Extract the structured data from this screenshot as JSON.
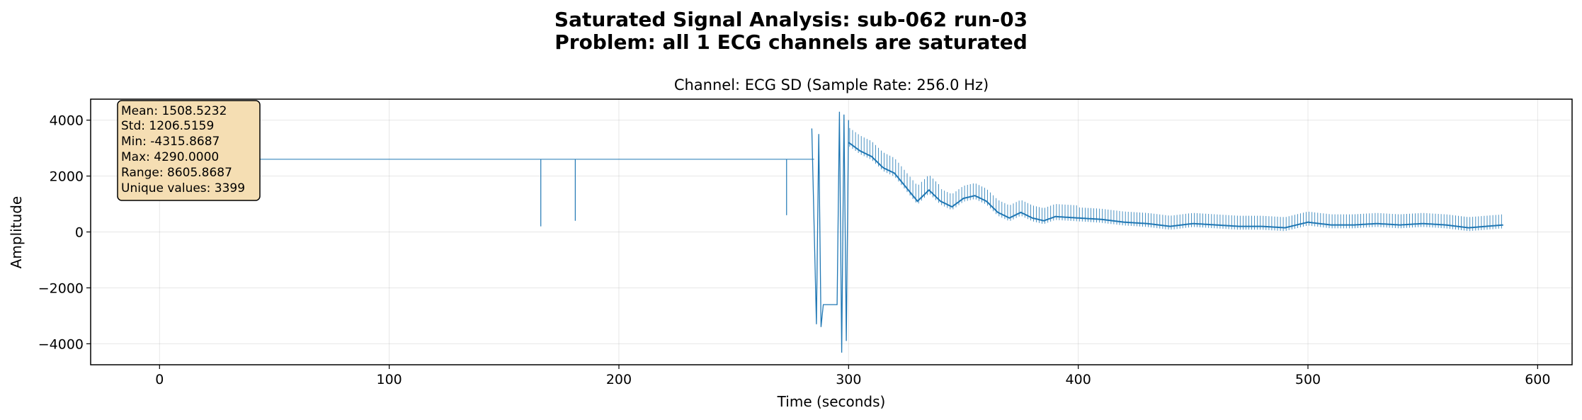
{
  "figure": {
    "title_line1": "Saturated Signal Analysis: sub-062 run-03",
    "title_line2": "Problem: all 1 ECG channels are saturated"
  },
  "chart_data": {
    "type": "line",
    "title": "Channel: ECG SD (Sample Rate: 256.0 Hz)",
    "xlabel": "Time (seconds)",
    "ylabel": "Amplitude",
    "xlim": [
      -30,
      615
    ],
    "ylim": [
      -4750,
      4750
    ],
    "xticks": [
      0,
      100,
      200,
      300,
      400,
      500,
      600
    ],
    "yticks": [
      -4000,
      -2000,
      0,
      2000,
      4000
    ],
    "ytick_labels": [
      "−4000",
      "−2000",
      "0",
      "2000",
      "4000"
    ],
    "grid": true,
    "line_color": "#1f77b4",
    "series": [
      {
        "baseline": {
          "x": [
            0,
            285
          ],
          "y": [
            2600,
            2600
          ]
        },
        "dropouts": [
          {
            "x": 166,
            "y_from": 2600,
            "y_to": 200
          },
          {
            "x": 181,
            "y_from": 2600,
            "y_to": 400
          },
          {
            "x": 273,
            "y_from": 2600,
            "y_to": 600
          }
        ],
        "saturation_segment": {
          "x": [
            284,
            286,
            287,
            288,
            289,
            290,
            291,
            292,
            293,
            294,
            295,
            296,
            297,
            298,
            299,
            300
          ],
          "y": [
            3700,
            -3300,
            3500,
            -3400,
            -2600,
            -2600,
            -2600,
            -2600,
            -2600,
            -2600,
            -2600,
            4300,
            -4316,
            4200,
            -3900,
            4000
          ]
        },
        "decay": {
          "x": [
            300,
            305,
            310,
            315,
            320,
            325,
            330,
            335,
            340,
            345,
            350,
            355,
            360,
            365,
            370,
            375,
            380,
            385,
            390,
            400,
            410,
            420,
            430,
            440,
            450,
            460,
            470,
            480,
            490,
            500,
            510,
            520,
            530,
            540,
            550,
            560,
            570,
            585
          ],
          "y": [
            3200,
            2900,
            2700,
            2300,
            2100,
            1600,
            1100,
            1500,
            1100,
            900,
            1200,
            1300,
            1100,
            700,
            500,
            700,
            500,
            400,
            550,
            500,
            450,
            350,
            300,
            200,
            300,
            250,
            200,
            200,
            150,
            350,
            250,
            250,
            300,
            250,
            300,
            250,
            150,
            250
          ]
        }
      }
    ],
    "stats_box": {
      "lines": [
        "Mean: 1508.5232",
        "Std: 1206.5159",
        "Min: -4315.8687",
        "Max: 4290.0000",
        "Range: 8605.8687",
        "Unique values: 3399"
      ],
      "placement": "top-left",
      "facecolor": "#f5deb3",
      "edgecolor": "#000000"
    }
  }
}
